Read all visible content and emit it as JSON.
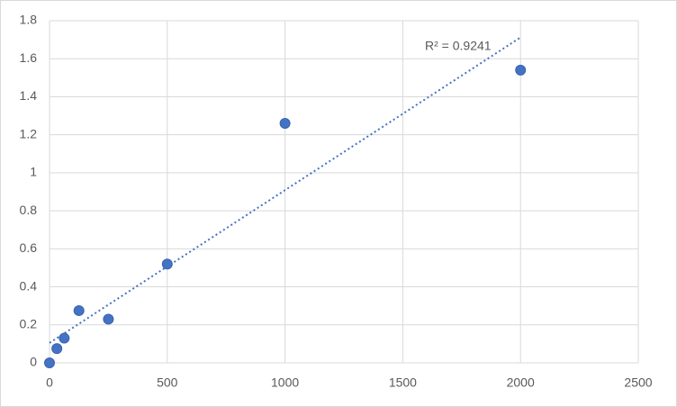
{
  "chart_data": {
    "type": "scatter",
    "x": [
      0,
      31.25,
      62.5,
      125,
      250,
      500,
      1000,
      2000
    ],
    "values": [
      0,
      0.075,
      0.13,
      0.275,
      0.23,
      0.52,
      1.26,
      1.54
    ],
    "color": "#4472c4",
    "trendline": "linear",
    "trendline_label": "R² = 0.9241",
    "xlim": [
      0,
      2500
    ],
    "xticks": [
      0,
      500,
      1000,
      1500,
      2000,
      2500
    ],
    "ylim": [
      0,
      1.8
    ],
    "yticks": [
      0,
      {
        "value": 0.2,
        "label": "0.2"
      },
      {
        "value": 0.4,
        "label": "0.4"
      },
      {
        "value": 0.6,
        "label": "0.6"
      },
      {
        "value": 0.8,
        "label": "0.8"
      },
      1,
      {
        "value": 1.2,
        "label": "1.2"
      },
      {
        "value": 1.4,
        "label": "1.4"
      },
      {
        "value": 1.6,
        "label": "1.6"
      },
      {
        "value": 1.8,
        "label": "1.8"
      }
    ],
    "grid": true
  }
}
